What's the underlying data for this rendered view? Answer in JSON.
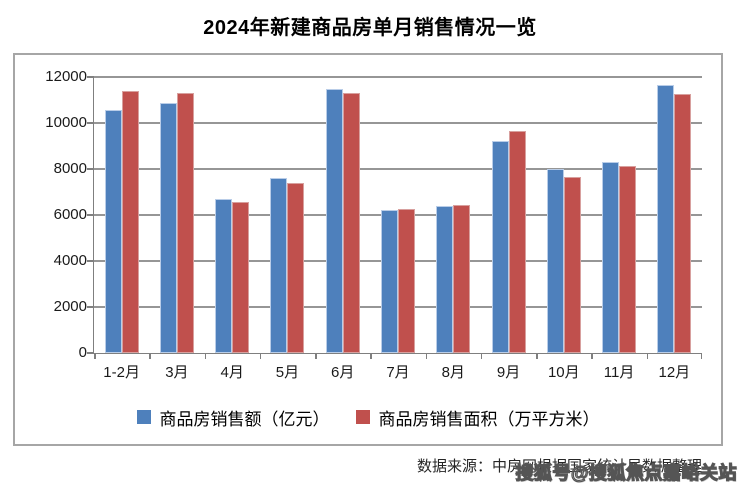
{
  "page": {
    "title": "2024年新建商品房单月销售情况一览"
  },
  "chart_data": {
    "type": "bar",
    "title": "2024年新建商品房单月销售情况一览",
    "categories": [
      "1-2月",
      "3月",
      "4月",
      "5月",
      "6月",
      "7月",
      "8月",
      "9月",
      "10月",
      "11月",
      "12月"
    ],
    "series": [
      {
        "name": "商品房销售额（亿元）",
        "color": "#4e80bc",
        "values": [
          10550,
          10850,
          6700,
          7600,
          11500,
          6200,
          6400,
          9200,
          8000,
          8300,
          11650
        ]
      },
      {
        "name": "商品房销售面积（万平方米）",
        "color": "#c0504d",
        "values": [
          11400,
          11300,
          6550,
          7400,
          11300,
          6250,
          6450,
          9650,
          7650,
          8150,
          11250
        ]
      }
    ],
    "xlabel": "",
    "ylabel": "",
    "ylim": [
      0,
      12000
    ],
    "yticks": [
      0,
      2000,
      4000,
      6000,
      8000,
      10000,
      12000
    ],
    "grid": true,
    "legend_position": "bottom"
  },
  "footer": {
    "source_text": "数据来源：中房网根据国家统计局数据整理",
    "watermark": "搜狐号@搜狐焦点嘉峪关站"
  },
  "colors": {
    "series_blue": "#4e80bc",
    "series_red": "#c0504d",
    "gridline": "#969696",
    "frame_border": "#a6a6a6"
  }
}
